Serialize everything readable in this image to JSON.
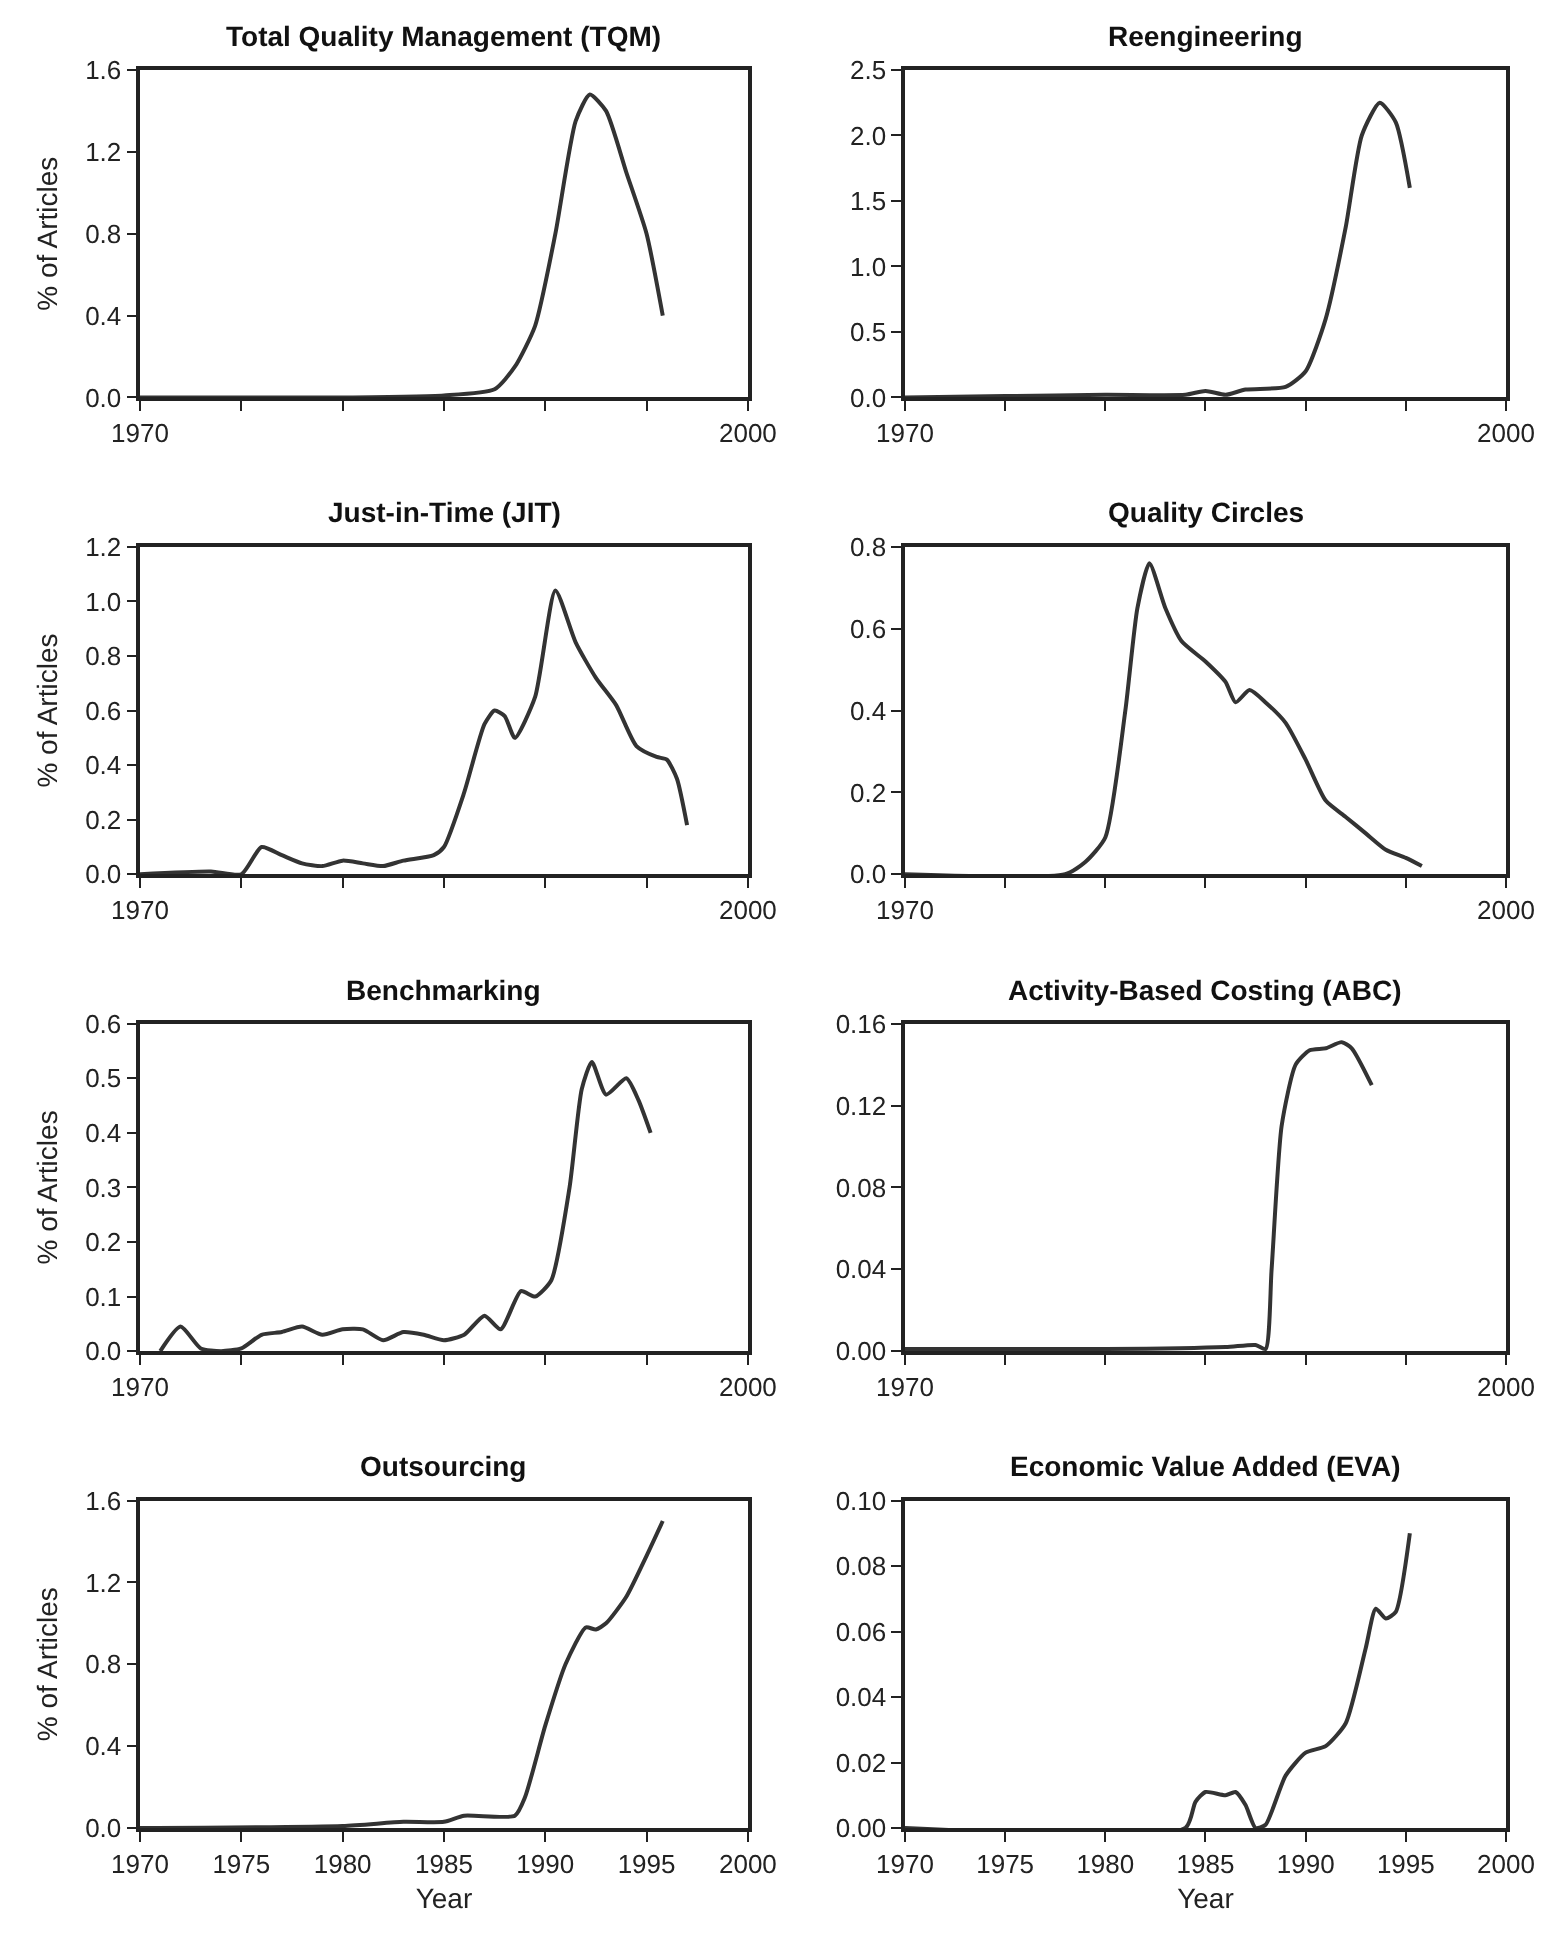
{
  "chart_data": [
    {
      "type": "line",
      "title": "Total Quality Management (TQM)",
      "ylabel": "% of Articles",
      "xlim": [
        1970,
        2000
      ],
      "xticks": [
        1970,
        {
          "value": 1975,
          "label": null
        },
        {
          "value": 1980,
          "label": null
        },
        {
          "value": 1985,
          "label": null
        },
        {
          "value": 1990,
          "label": null
        },
        {
          "value": 1995,
          "label": null
        },
        2000
      ],
      "ylim": [
        0,
        1.6
      ],
      "yticks": [
        {
          "value": 0,
          "label": "0.0"
        },
        0.4,
        0.8,
        1.2,
        1.6
      ],
      "marker": "none",
      "line_style": "solid",
      "series": [
        {
          "color": "#333333",
          "x": [
            1970,
            1975,
            1980,
            1985,
            1987.5,
            1988.5,
            1989.5,
            1990.5,
            1991.5,
            1992.2,
            1993,
            1994,
            1995,
            1995.8
          ],
          "values": [
            0,
            0,
            0,
            0.01,
            0.04,
            0.15,
            0.35,
            0.8,
            1.35,
            1.48,
            1.4,
            1.1,
            0.8,
            0.4
          ]
        }
      ]
    },
    {
      "type": "line",
      "title": "Reengineering",
      "xlim": [
        1970,
        2000
      ],
      "xticks": [
        1970,
        {
          "value": 1975,
          "label": null
        },
        {
          "value": 1980,
          "label": null
        },
        {
          "value": 1985,
          "label": null
        },
        {
          "value": 1990,
          "label": null
        },
        {
          "value": 1995,
          "label": null
        },
        2000
      ],
      "ylim": [
        0,
        2.5
      ],
      "yticks": [
        {
          "value": 0,
          "label": "0.0"
        },
        0.5,
        {
          "value": 1,
          "label": "1.0"
        },
        1.5,
        {
          "value": 2,
          "label": "2.0"
        },
        2.5
      ],
      "marker": "none",
      "line_style": "solid",
      "series": [
        {
          "color": "#333333",
          "x": [
            1970,
            1975,
            1980,
            1984,
            1985,
            1986,
            1987,
            1989,
            1990,
            1991,
            1992,
            1992.8,
            1993.7,
            1994.5,
            1995.2
          ],
          "values": [
            0,
            0.01,
            0.02,
            0.02,
            0.05,
            0.02,
            0.06,
            0.08,
            0.2,
            0.6,
            1.3,
            2.0,
            2.25,
            2.1,
            1.6
          ]
        }
      ]
    },
    {
      "type": "line",
      "title": "Just-in-Time (JIT)",
      "ylabel": "% of Articles",
      "xlim": [
        1970,
        2000
      ],
      "xticks": [
        1970,
        {
          "value": 1975,
          "label": null
        },
        {
          "value": 1980,
          "label": null
        },
        {
          "value": 1985,
          "label": null
        },
        {
          "value": 1990,
          "label": null
        },
        {
          "value": 1995,
          "label": null
        },
        2000
      ],
      "ylim": [
        0,
        1.2
      ],
      "yticks": [
        {
          "value": 0,
          "label": "0.0"
        },
        0.2,
        0.4,
        0.6,
        0.8,
        {
          "value": 1,
          "label": "1.0"
        },
        1.2
      ],
      "marker": "none",
      "line_style": "solid",
      "series": [
        {
          "color": "#333333",
          "x": [
            1970,
            1973.5,
            1975,
            1976,
            1977,
            1978,
            1979,
            1980,
            1981,
            1982,
            1983,
            1984.5,
            1985,
            1986,
            1987,
            1987.5,
            1988,
            1988.5,
            1989.5,
            1990.5,
            1991.5,
            1992.5,
            1993.5,
            1994.5,
            1995.5,
            1996,
            1996.5,
            1997
          ],
          "values": [
            0,
            0.01,
            0,
            0.1,
            0.07,
            0.04,
            0.03,
            0.05,
            0.04,
            0.03,
            0.05,
            0.07,
            0.1,
            0.3,
            0.55,
            0.6,
            0.58,
            0.5,
            0.65,
            1.04,
            0.85,
            0.72,
            0.62,
            0.47,
            0.43,
            0.42,
            0.35,
            0.18
          ]
        }
      ]
    },
    {
      "type": "line",
      "title": "Quality Circles",
      "xlim": [
        1970,
        2000
      ],
      "xticks": [
        1970,
        {
          "value": 1975,
          "label": null
        },
        {
          "value": 1980,
          "label": null
        },
        {
          "value": 1985,
          "label": null
        },
        {
          "value": 1990,
          "label": null
        },
        {
          "value": 1995,
          "label": null
        },
        2000
      ],
      "ylim": [
        0,
        0.8
      ],
      "yticks": [
        {
          "value": 0,
          "label": "0.0"
        },
        0.2,
        0.4,
        0.6,
        0.8
      ],
      "marker": "none",
      "line_style": "solid",
      "series": [
        {
          "color": "#333333",
          "x": [
            1970,
            1978,
            1979,
            1980,
            1981,
            1981.6,
            1982.2,
            1983,
            1983.8,
            1985,
            1986,
            1986.5,
            1987.2,
            1988,
            1989,
            1990,
            1991,
            1992,
            1993,
            1994,
            1995,
            1995.8
          ],
          "values": [
            0,
            0,
            0.03,
            0.09,
            0.4,
            0.65,
            0.76,
            0.65,
            0.57,
            0.52,
            0.47,
            0.42,
            0.45,
            0.42,
            0.37,
            0.28,
            0.18,
            0.14,
            0.1,
            0.06,
            0.04,
            0.02
          ]
        }
      ]
    },
    {
      "type": "line",
      "title": "Benchmarking",
      "ylabel": "% of Articles",
      "xlim": [
        1970,
        2000
      ],
      "xticks": [
        1970,
        {
          "value": 1975,
          "label": null
        },
        {
          "value": 1980,
          "label": null
        },
        {
          "value": 1985,
          "label": null
        },
        {
          "value": 1990,
          "label": null
        },
        {
          "value": 1995,
          "label": null
        },
        2000
      ],
      "ylim": [
        0,
        0.6
      ],
      "yticks": [
        {
          "value": 0,
          "label": "0.0"
        },
        0.1,
        0.2,
        0.3,
        0.4,
        0.5,
        0.6
      ],
      "marker": "none",
      "line_style": "solid",
      "series": [
        {
          "color": "#333333",
          "x": [
            1971,
            1972,
            1973,
            1974,
            1975,
            1976,
            1977,
            1978,
            1979,
            1980,
            1981,
            1982,
            1983,
            1984,
            1985,
            1986,
            1987,
            1987.8,
            1988.8,
            1989.5,
            1990.3,
            1991.2,
            1991.8,
            1992.3,
            1993,
            1994,
            1994.6,
            1995.2
          ],
          "values": [
            0,
            0.045,
            0.005,
            0,
            0.005,
            0.03,
            0.035,
            0.045,
            0.03,
            0.04,
            0.04,
            0.02,
            0.035,
            0.03,
            0.02,
            0.03,
            0.065,
            0.04,
            0.11,
            0.1,
            0.13,
            0.3,
            0.48,
            0.53,
            0.47,
            0.5,
            0.46,
            0.4
          ]
        }
      ]
    },
    {
      "type": "line",
      "title": "Activity-Based Costing (ABC)",
      "xlim": [
        1970,
        2000
      ],
      "xticks": [
        1970,
        {
          "value": 1975,
          "label": null
        },
        {
          "value": 1980,
          "label": null
        },
        {
          "value": 1985,
          "label": null
        },
        {
          "value": 1990,
          "label": null
        },
        {
          "value": 1995,
          "label": null
        },
        2000
      ],
      "ylim": [
        0,
        0.16
      ],
      "yticks": [
        {
          "value": 0,
          "label": "0.00"
        },
        0.04,
        0.08,
        0.12,
        0.16
      ],
      "marker": "none",
      "line_style": "solid",
      "series": [
        {
          "color": "#333333",
          "x": [
            1970,
            1980,
            1986,
            1987.5,
            1988,
            1988.3,
            1988.8,
            1989.5,
            1990.2,
            1991,
            1991.8,
            1992.3,
            1993.3
          ],
          "values": [
            0.001,
            0.001,
            0.002,
            0.003,
            0.001,
            0.04,
            0.11,
            0.14,
            0.147,
            0.148,
            0.151,
            0.148,
            0.13
          ]
        }
      ]
    },
    {
      "type": "line",
      "title": "Outsourcing",
      "xlabel": "Year",
      "ylabel": "% of Articles",
      "xlim": [
        1970,
        2000
      ],
      "xticks": [
        1970,
        1975,
        1980,
        1985,
        1990,
        1995,
        2000
      ],
      "ylim": [
        0,
        1.6
      ],
      "yticks": [
        {
          "value": 0,
          "label": "0.0"
        },
        0.4,
        0.8,
        1.2,
        1.6
      ],
      "marker": "none",
      "line_style": "solid",
      "series": [
        {
          "color": "#333333",
          "x": [
            1970,
            1980,
            1983,
            1985,
            1986,
            1988.5,
            1989,
            1990,
            1991,
            1992,
            1992.5,
            1993,
            1994,
            1995,
            1995.8
          ],
          "values": [
            0,
            0.01,
            0.03,
            0.03,
            0.06,
            0.06,
            0.15,
            0.5,
            0.8,
            0.98,
            0.97,
            1.0,
            1.13,
            1.33,
            1.5
          ]
        }
      ]
    },
    {
      "type": "line",
      "title": "Economic Value Added (EVA)",
      "xlabel": "Year",
      "xlim": [
        1970,
        2000
      ],
      "xticks": [
        1970,
        1975,
        1980,
        1985,
        1990,
        1995,
        2000
      ],
      "ylim": [
        0,
        0.1
      ],
      "yticks": [
        {
          "value": 0,
          "label": "0.00"
        },
        0.02,
        0.04,
        0.06,
        0.08,
        {
          "value": 0.1,
          "label": "0.10"
        }
      ],
      "marker": "none",
      "line_style": "solid",
      "series": [
        {
          "color": "#333333",
          "x": [
            1970,
            1984,
            1984.5,
            1985,
            1986,
            1986.5,
            1987,
            1987.5,
            1988,
            1989,
            1990,
            1991,
            1992,
            1993,
            1993.5,
            1994,
            1994.5,
            1995.2
          ],
          "values": [
            0,
            0,
            0.008,
            0.011,
            0.01,
            0.011,
            0.007,
            0,
            0.001,
            0.016,
            0.023,
            0.025,
            0.032,
            0.055,
            0.067,
            0.064,
            0.066,
            0.09
          ]
        }
      ]
    }
  ]
}
